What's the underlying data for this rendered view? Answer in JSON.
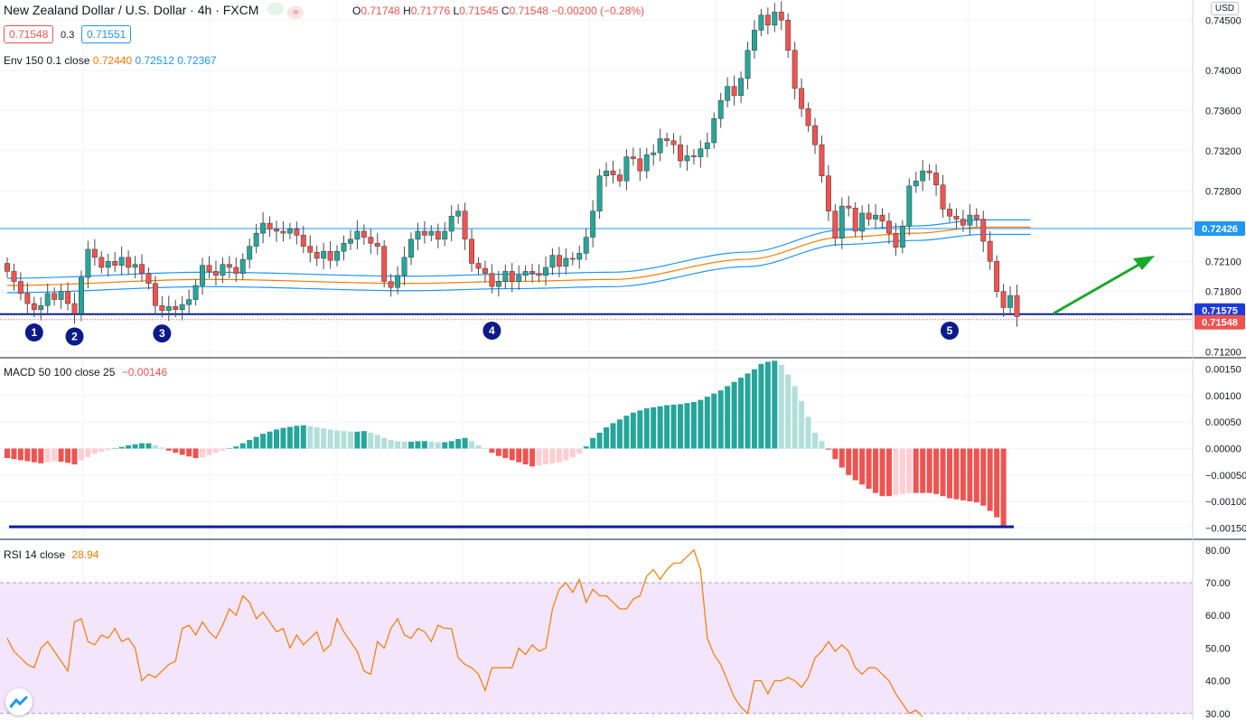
{
  "header": {
    "symbol": "New Zealand Dollar / U.S. Dollar · 4h · FXCM",
    "open_label": "O",
    "open": "0.71748",
    "high_label": "H",
    "high": "0.71776",
    "low_label": "L",
    "low": "0.71545",
    "close_label": "C",
    "close": "0.71548",
    "change": "−0.00200 (−0.28%)",
    "sell_price": "0.71548",
    "spread": "0.3",
    "buy_price": "0.71551",
    "env_label": "Env 150 0.1 close",
    "env_values": [
      "0.72440",
      "0.72512",
      "0.72367"
    ],
    "currency_button": "USD"
  },
  "macd": {
    "label": "MACD 50 100 close 25",
    "value": "−0.00146"
  },
  "rsi": {
    "label": "RSI 14 close",
    "value": "28.94"
  },
  "colors": {
    "up": "#26a69a",
    "down": "#ef5350",
    "env_mid": "#f57c00",
    "env_band": "#2196f3",
    "support": "#0d1ea1",
    "arrow": "#1aa82a",
    "rsi_line": "#f57c00",
    "rsi_band": "#f3e5fb"
  },
  "chart_data": [
    {
      "type": "candlestick",
      "ylim": [
        0.7115,
        0.747
      ],
      "yticks": [
        "0.74500",
        "0.74000",
        "0.73600",
        "0.73200",
        "0.72800",
        "0.72100",
        "0.71800",
        "0.71200"
      ],
      "price_labels": [
        {
          "text": "0.72426",
          "value": 0.72426,
          "color": "#2196f3"
        },
        {
          "text": "0.71575",
          "value": 0.71575,
          "color": "#1e3adb"
        },
        {
          "text": "0.71548",
          "value": 0.71548,
          "color": "#ef5350"
        }
      ],
      "horizontal_lines": [
        {
          "value": 0.72426,
          "color": "#2196f3"
        },
        {
          "value": 0.71575,
          "color": "#0d1ea1"
        }
      ],
      "markers": [
        {
          "label": "1",
          "bar": 4
        },
        {
          "label": "2",
          "bar": 10
        },
        {
          "label": "3",
          "bar": 23
        },
        {
          "label": "4",
          "bar": 72
        },
        {
          "label": "5",
          "bar": 140
        }
      ],
      "closes": [
        0.72,
        0.719,
        0.7178,
        0.7168,
        0.7162,
        0.7166,
        0.7178,
        0.7172,
        0.718,
        0.7168,
        0.7158,
        0.7194,
        0.7222,
        0.7214,
        0.7204,
        0.721,
        0.7206,
        0.7214,
        0.7204,
        0.7207,
        0.7198,
        0.7188,
        0.7166,
        0.7161,
        0.7165,
        0.7162,
        0.7167,
        0.7172,
        0.7186,
        0.7206,
        0.72,
        0.7196,
        0.7207,
        0.7204,
        0.7198,
        0.7212,
        0.7225,
        0.7238,
        0.7248,
        0.7242,
        0.724,
        0.7238,
        0.7242,
        0.7236,
        0.7225,
        0.7219,
        0.7213,
        0.722,
        0.7211,
        0.722,
        0.7228,
        0.7232,
        0.724,
        0.7234,
        0.7228,
        0.7225,
        0.719,
        0.7184,
        0.7196,
        0.7214,
        0.7232,
        0.724,
        0.7236,
        0.724,
        0.7232,
        0.724,
        0.7255,
        0.726,
        0.7232,
        0.7208,
        0.7203,
        0.7198,
        0.7185,
        0.719,
        0.72,
        0.719,
        0.7196,
        0.72,
        0.7198,
        0.7196,
        0.7204,
        0.7216,
        0.7205,
        0.7213,
        0.7212,
        0.7218,
        0.7234,
        0.726,
        0.7295,
        0.73,
        0.7296,
        0.729,
        0.7314,
        0.7312,
        0.73,
        0.7316,
        0.7318,
        0.7332,
        0.733,
        0.7326,
        0.731,
        0.7315,
        0.7314,
        0.7322,
        0.7328,
        0.7352,
        0.737,
        0.7384,
        0.7375,
        0.7392,
        0.742,
        0.744,
        0.7455,
        0.7445,
        0.7458,
        0.745,
        0.742,
        0.7382,
        0.7362,
        0.7345,
        0.7326,
        0.7295,
        0.726,
        0.7233,
        0.7265,
        0.7263,
        0.724,
        0.7258,
        0.7252,
        0.7256,
        0.725,
        0.7238,
        0.7224,
        0.7245,
        0.7285,
        0.729,
        0.73,
        0.7298,
        0.7286,
        0.7262,
        0.7255,
        0.7252,
        0.7246,
        0.7256,
        0.7252,
        0.723,
        0.721,
        0.718,
        0.7164,
        0.7176,
        0.7155
      ],
      "env_mid": {
        "start": 0.7186,
        "points": [
          [
            0,
            0.7186
          ],
          [
            30,
            0.7192
          ],
          [
            60,
            0.7188
          ],
          [
            75,
            0.719
          ],
          [
            90,
            0.7192
          ],
          [
            110,
            0.7212
          ],
          [
            124,
            0.7234
          ],
          [
            135,
            0.7238
          ],
          [
            145,
            0.7244
          ]
        ]
      }
    },
    {
      "type": "bar",
      "name": "MACD histogram",
      "ylim": [
        -0.0017,
        0.0017
      ],
      "yticks": [
        "0.00150",
        "0.00100",
        "0.00050",
        "0.00000",
        "−0.00050",
        "−0.00100",
        "−0.00150"
      ],
      "values": [
        -0.00018,
        -0.0002,
        -0.00022,
        -0.00024,
        -0.00026,
        -0.00028,
        -0.00026,
        -0.00024,
        -0.00025,
        -0.00027,
        -0.0003,
        -0.00022,
        -0.00016,
        -0.0001,
        -6e-05,
        -3e-05,
        1e-05,
        3e-05,
        6e-05,
        8e-05,
        0.0001,
        0.0001,
        6e-05,
        2e-05,
        -4e-05,
        -8e-05,
        -0.00012,
        -0.00015,
        -0.00018,
        -0.00017,
        -0.00012,
        -8e-05,
        -4e-05,
        0.0,
        4e-05,
        0.0001,
        0.00016,
        0.00022,
        0.00028,
        0.00032,
        0.00036,
        0.00039,
        0.00041,
        0.00043,
        0.00044,
        0.00042,
        0.0004,
        0.00038,
        0.00036,
        0.00034,
        0.00033,
        0.00032,
        0.00032,
        0.00033,
        0.0003,
        0.00026,
        0.0002,
        0.00016,
        0.00014,
        0.00013,
        0.00013,
        0.00014,
        0.00014,
        0.00013,
        0.00012,
        0.00012,
        0.00014,
        0.00018,
        0.0002,
        0.00014,
        6e-05,
        0.0,
        -8e-05,
        -0.00014,
        -0.00018,
        -0.00022,
        -0.00026,
        -0.0003,
        -0.00034,
        -0.00032,
        -0.0003,
        -0.00028,
        -0.00026,
        -0.00022,
        -0.00016,
        -0.0001,
        4e-05,
        0.0002,
        0.0003,
        0.0004,
        0.00048,
        0.00055,
        0.00062,
        0.00068,
        0.00072,
        0.00076,
        0.00078,
        0.0008,
        0.00082,
        0.00083,
        0.00084,
        0.00086,
        0.00088,
        0.00092,
        0.00098,
        0.00104,
        0.0011,
        0.00118,
        0.00126,
        0.00134,
        0.00142,
        0.0015,
        0.0016,
        0.00164,
        0.00166,
        0.00158,
        0.0014,
        0.00118,
        0.0009,
        0.0006,
        0.0003,
        0.00014,
        -2e-05,
        -0.0002,
        -0.00036,
        -0.0005,
        -0.0006,
        -0.00068,
        -0.00076,
        -0.00084,
        -0.0009,
        -0.0009,
        -0.00088,
        -0.00086,
        -0.00084,
        -0.00084,
        -0.00084,
        -0.00084,
        -0.00086,
        -0.0009,
        -0.00094,
        -0.00096,
        -0.00098,
        -0.001,
        -0.00102,
        -0.00108,
        -0.00118,
        -0.0013,
        -0.00146
      ],
      "support_line": -0.00148
    },
    {
      "type": "line",
      "name": "RSI",
      "ylim": [
        28,
        83
      ],
      "yticks": [
        "80.00",
        "70.00",
        "60.00",
        "50.00",
        "40.00",
        "30.00"
      ],
      "band": [
        30,
        70
      ],
      "values": [
        53,
        49,
        47,
        45,
        44,
        50,
        52,
        49,
        46,
        43,
        58,
        59,
        52,
        51,
        54,
        53,
        56,
        52,
        53,
        50,
        40,
        42,
        41,
        43,
        45,
        46,
        56,
        57,
        54,
        58,
        55,
        53,
        57,
        62,
        60,
        66,
        64,
        59,
        61,
        58,
        55,
        56,
        50,
        54,
        51,
        53,
        55,
        49,
        51,
        59,
        55,
        52,
        49,
        43,
        42,
        52,
        50,
        56,
        59,
        54,
        53,
        56,
        55,
        52,
        57,
        56,
        56,
        47,
        45,
        44,
        42,
        37,
        44,
        44,
        44,
        44,
        50,
        48,
        51,
        49,
        50,
        62,
        68,
        70,
        67,
        71,
        64,
        68,
        66,
        66,
        64,
        62,
        62,
        65,
        66,
        72,
        74,
        71,
        74,
        76,
        76,
        78,
        80,
        74,
        53,
        48,
        45,
        40,
        35,
        32,
        30,
        40,
        40,
        36,
        40,
        40,
        41,
        40,
        38,
        41,
        47,
        49,
        52,
        49,
        51,
        49,
        44,
        42,
        44,
        44,
        42,
        40,
        36,
        33,
        30,
        31,
        29
      ],
      "partial_start": 2
    }
  ]
}
